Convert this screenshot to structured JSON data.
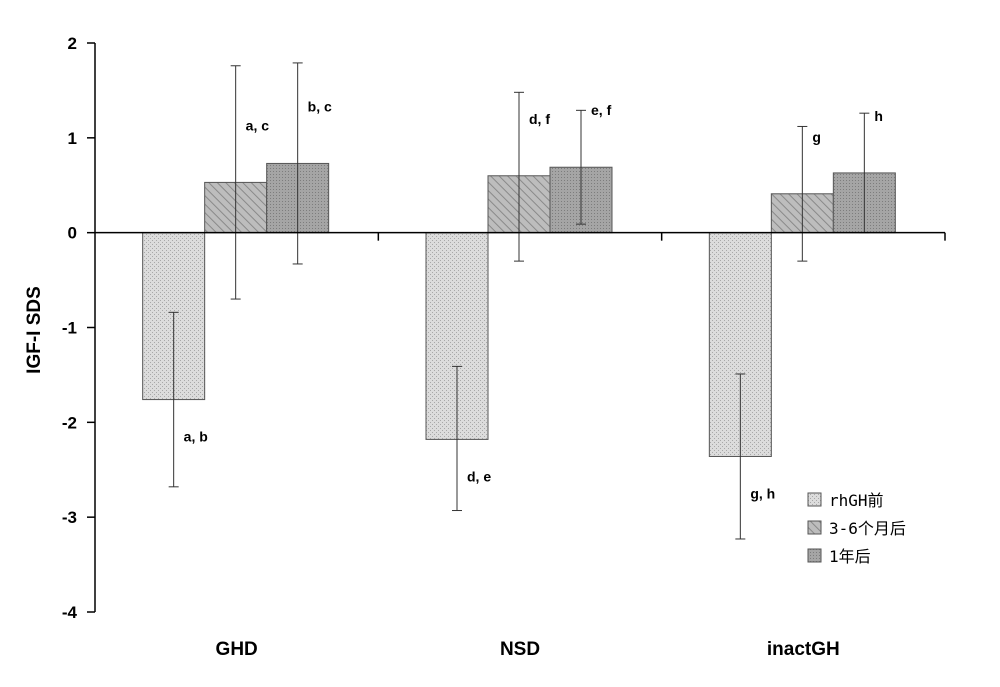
{
  "chart_data": {
    "type": "bar",
    "title": "",
    "xlabel": "",
    "ylabel": "IGF-I SDS",
    "ylim": [
      -4,
      2
    ],
    "yticks": [
      "2",
      "1",
      "0",
      "-1",
      "-2",
      "-3",
      "-4"
    ],
    "categories": [
      "GHD",
      "NSD",
      "inactGH"
    ],
    "legend_position": "bottom-right",
    "grid": false,
    "series": [
      {
        "name": "rhGH前",
        "color": "#d4d4d4",
        "pattern": "dots",
        "values": [
          -1.76,
          -2.18,
          -2.36
        ],
        "error_low": [
          -2.68,
          -2.93,
          -3.23
        ],
        "error_high": [
          -0.84,
          -1.41,
          -1.49
        ],
        "annotations": [
          "a, b",
          "d, e",
          "g, h"
        ]
      },
      {
        "name": "3-6个月后",
        "color": "#b0b0b0",
        "pattern": "hatch",
        "values": [
          0.53,
          0.6,
          0.41
        ],
        "error_low": [
          -0.7,
          -0.3,
          -0.3
        ],
        "error_high": [
          1.76,
          1.48,
          1.12
        ],
        "annotations": [
          "a, c",
          "d, f",
          "g"
        ]
      },
      {
        "name": "1年后",
        "color": "#9a9a9a",
        "pattern": "dots-dark",
        "values": [
          0.73,
          0.69,
          0.63
        ],
        "error_low": [
          -0.33,
          0.09,
          0.0
        ],
        "error_high": [
          1.79,
          1.29,
          1.26
        ],
        "annotations": [
          "b, c",
          "e, f",
          "h"
        ]
      }
    ]
  }
}
